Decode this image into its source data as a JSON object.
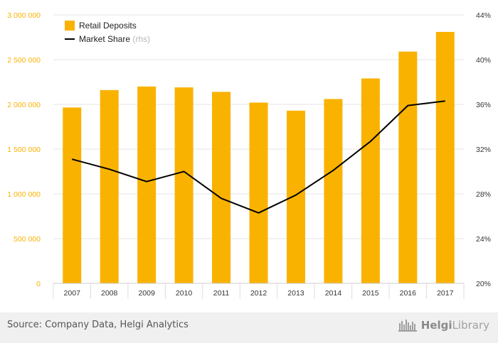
{
  "chart_data": {
    "type": "bar+line",
    "categories": [
      "2007",
      "2008",
      "2009",
      "2010",
      "2011",
      "2012",
      "2013",
      "2014",
      "2015",
      "2016",
      "2017"
    ],
    "series": [
      {
        "name": "Retail Deposits",
        "type": "bar",
        "axis": "left",
        "color": "#f9b200",
        "values": [
          1965000,
          2160000,
          2200000,
          2190000,
          2140000,
          2020000,
          1930000,
          2060000,
          2290000,
          2590000,
          2810000
        ]
      },
      {
        "name": "Market Share",
        "type": "line",
        "axis": "right",
        "color": "#000000",
        "values": [
          31.1,
          30.2,
          29.1,
          30.0,
          27.6,
          26.3,
          27.9,
          30.1,
          32.7,
          35.9,
          36.3
        ]
      }
    ],
    "legend": {
      "position": "top-left",
      "items": [
        {
          "label": "Retail Deposits",
          "suffix": ""
        },
        {
          "label": "Market Share",
          "suffix": "(rhs)"
        }
      ]
    },
    "yleft": {
      "ylim": [
        0,
        3000000
      ],
      "ticks": [
        0,
        500000,
        1000000,
        1500000,
        2000000,
        2500000,
        3000000
      ],
      "tick_labels": [
        "0",
        "500 000",
        "1 000 000",
        "1 500 000",
        "2 000 000",
        "2 500 000",
        "3 000 000"
      ],
      "tick_color": "#f9b200"
    },
    "yright": {
      "ylim": [
        20,
        44
      ],
      "ticks": [
        20,
        24,
        28,
        32,
        36,
        40,
        44
      ],
      "tick_labels": [
        "20%",
        "24%",
        "28%",
        "32%",
        "36%",
        "40%",
        "44%"
      ]
    },
    "grid": true
  },
  "footer": {
    "source": "Source: Company Data, Helgi Analytics",
    "brand_prefix": "Helgi",
    "brand_suffix": "Library"
  }
}
